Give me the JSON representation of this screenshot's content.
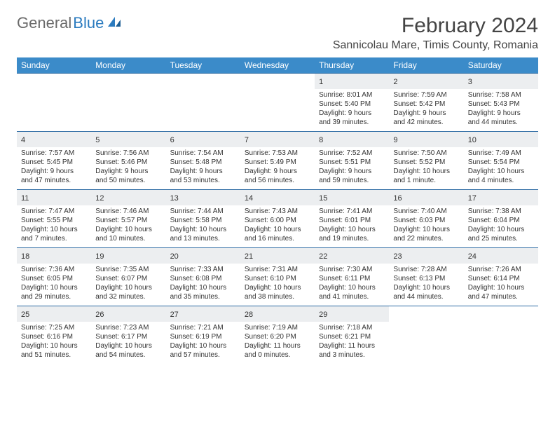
{
  "logo": {
    "part1": "General",
    "part2": "Blue"
  },
  "title": "February 2024",
  "location": "Sannicolau Mare, Timis County, Romania",
  "colors": {
    "header_bg": "#3b8bc9",
    "header_text": "#ffffff",
    "row_border": "#2b6aa3",
    "daynum_bg": "#eceef0",
    "text": "#333333"
  },
  "weekdays": [
    "Sunday",
    "Monday",
    "Tuesday",
    "Wednesday",
    "Thursday",
    "Friday",
    "Saturday"
  ],
  "weeks": [
    [
      null,
      null,
      null,
      null,
      {
        "n": "1",
        "sr": "8:01 AM",
        "ss": "5:40 PM",
        "dl": "9 hours and 39 minutes."
      },
      {
        "n": "2",
        "sr": "7:59 AM",
        "ss": "5:42 PM",
        "dl": "9 hours and 42 minutes."
      },
      {
        "n": "3",
        "sr": "7:58 AM",
        "ss": "5:43 PM",
        "dl": "9 hours and 44 minutes."
      }
    ],
    [
      {
        "n": "4",
        "sr": "7:57 AM",
        "ss": "5:45 PM",
        "dl": "9 hours and 47 minutes."
      },
      {
        "n": "5",
        "sr": "7:56 AM",
        "ss": "5:46 PM",
        "dl": "9 hours and 50 minutes."
      },
      {
        "n": "6",
        "sr": "7:54 AM",
        "ss": "5:48 PM",
        "dl": "9 hours and 53 minutes."
      },
      {
        "n": "7",
        "sr": "7:53 AM",
        "ss": "5:49 PM",
        "dl": "9 hours and 56 minutes."
      },
      {
        "n": "8",
        "sr": "7:52 AM",
        "ss": "5:51 PM",
        "dl": "9 hours and 59 minutes."
      },
      {
        "n": "9",
        "sr": "7:50 AM",
        "ss": "5:52 PM",
        "dl": "10 hours and 1 minute."
      },
      {
        "n": "10",
        "sr": "7:49 AM",
        "ss": "5:54 PM",
        "dl": "10 hours and 4 minutes."
      }
    ],
    [
      {
        "n": "11",
        "sr": "7:47 AM",
        "ss": "5:55 PM",
        "dl": "10 hours and 7 minutes."
      },
      {
        "n": "12",
        "sr": "7:46 AM",
        "ss": "5:57 PM",
        "dl": "10 hours and 10 minutes."
      },
      {
        "n": "13",
        "sr": "7:44 AM",
        "ss": "5:58 PM",
        "dl": "10 hours and 13 minutes."
      },
      {
        "n": "14",
        "sr": "7:43 AM",
        "ss": "6:00 PM",
        "dl": "10 hours and 16 minutes."
      },
      {
        "n": "15",
        "sr": "7:41 AM",
        "ss": "6:01 PM",
        "dl": "10 hours and 19 minutes."
      },
      {
        "n": "16",
        "sr": "7:40 AM",
        "ss": "6:03 PM",
        "dl": "10 hours and 22 minutes."
      },
      {
        "n": "17",
        "sr": "7:38 AM",
        "ss": "6:04 PM",
        "dl": "10 hours and 25 minutes."
      }
    ],
    [
      {
        "n": "18",
        "sr": "7:36 AM",
        "ss": "6:05 PM",
        "dl": "10 hours and 29 minutes."
      },
      {
        "n": "19",
        "sr": "7:35 AM",
        "ss": "6:07 PM",
        "dl": "10 hours and 32 minutes."
      },
      {
        "n": "20",
        "sr": "7:33 AM",
        "ss": "6:08 PM",
        "dl": "10 hours and 35 minutes."
      },
      {
        "n": "21",
        "sr": "7:31 AM",
        "ss": "6:10 PM",
        "dl": "10 hours and 38 minutes."
      },
      {
        "n": "22",
        "sr": "7:30 AM",
        "ss": "6:11 PM",
        "dl": "10 hours and 41 minutes."
      },
      {
        "n": "23",
        "sr": "7:28 AM",
        "ss": "6:13 PM",
        "dl": "10 hours and 44 minutes."
      },
      {
        "n": "24",
        "sr": "7:26 AM",
        "ss": "6:14 PM",
        "dl": "10 hours and 47 minutes."
      }
    ],
    [
      {
        "n": "25",
        "sr": "7:25 AM",
        "ss": "6:16 PM",
        "dl": "10 hours and 51 minutes."
      },
      {
        "n": "26",
        "sr": "7:23 AM",
        "ss": "6:17 PM",
        "dl": "10 hours and 54 minutes."
      },
      {
        "n": "27",
        "sr": "7:21 AM",
        "ss": "6:19 PM",
        "dl": "10 hours and 57 minutes."
      },
      {
        "n": "28",
        "sr": "7:19 AM",
        "ss": "6:20 PM",
        "dl": "11 hours and 0 minutes."
      },
      {
        "n": "29",
        "sr": "7:18 AM",
        "ss": "6:21 PM",
        "dl": "11 hours and 3 minutes."
      },
      null,
      null
    ]
  ],
  "labels": {
    "sunrise": "Sunrise: ",
    "sunset": "Sunset: ",
    "daylight": "Daylight: "
  }
}
